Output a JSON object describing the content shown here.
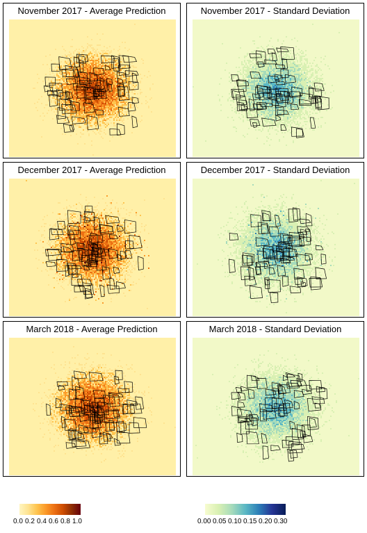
{
  "panels": [
    {
      "id": "nov-avg",
      "title": "November 2017 - Average Prediction",
      "kind": "prediction"
    },
    {
      "id": "nov-sd",
      "title": "November 2017 - Standard Deviation",
      "kind": "deviation"
    },
    {
      "id": "dec-avg",
      "title": "December 2017 - Average Prediction",
      "kind": "prediction"
    },
    {
      "id": "dec-sd",
      "title": "December 2017 - Standard Deviation",
      "kind": "deviation"
    },
    {
      "id": "mar-avg",
      "title": "March 2018 - Average Prediction",
      "kind": "prediction"
    },
    {
      "id": "mar-sd",
      "title": "March 2018 - Standard Deviation",
      "kind": "deviation"
    }
  ],
  "legends": {
    "prediction": {
      "colors": [
        "#fff5c0",
        "#fee391",
        "#fec44f",
        "#fb9a29",
        "#ec7014",
        "#cc4c02",
        "#8c2d04",
        "#67000d"
      ],
      "ticks": [
        "0.0",
        "0.2",
        "0.4",
        "0.6",
        "0.8",
        "1.0"
      ]
    },
    "deviation": {
      "colors": [
        "#f7fcd0",
        "#d9f0b3",
        "#a6dbbb",
        "#5bb8c4",
        "#2c7fb8",
        "#253494",
        "#081d58"
      ],
      "ticks": [
        "0.00",
        "0.05",
        "0.10",
        "0.15",
        "0.20",
        "0.30"
      ]
    }
  },
  "backgrounds": {
    "prediction": "#fff0a8",
    "deviation": "#f2f9c8"
  }
}
